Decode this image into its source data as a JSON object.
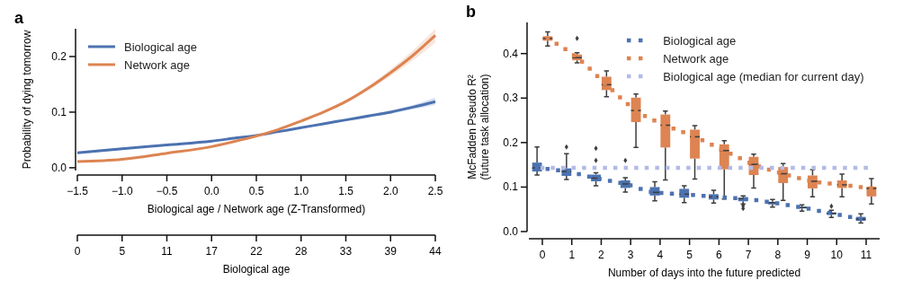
{
  "chart_data": [
    {
      "type": "line",
      "title": "a",
      "xlabel": "Biological age / Network age (Z-Transformed)",
      "ylabel": "Probability of dying tomorrow",
      "x2label": "Biological age",
      "xlim": [
        -1.5,
        2.5
      ],
      "ylim": [
        -0.005,
        0.25
      ],
      "xticks": [
        {
          "value": -1.5,
          "label": "−1.5"
        },
        {
          "value": -1,
          "label": "−1.0"
        },
        {
          "value": -0.5,
          "label": "−0.5"
        },
        {
          "value": 0,
          "label": "0.0"
        },
        0.5,
        {
          "value": 1,
          "label": "1.0"
        },
        1.5,
        {
          "value": 2,
          "label": "2.0"
        },
        2.5
      ],
      "yticks": [
        {
          "value": 0,
          "label": "0.0"
        },
        0.1,
        0.2
      ],
      "x2lim": [
        0,
        44
      ],
      "x2ticks": [
        0,
        {
          "value": 5.5,
          "label": "5"
        },
        11,
        {
          "value": 16.5,
          "label": "17"
        },
        22,
        {
          "value": 27.5,
          "label": "28"
        },
        33,
        {
          "value": 38.5,
          "label": "39"
        },
        44
      ],
      "x": [
        -1.5,
        -1,
        -0.5,
        0,
        0.25,
        0.5,
        0.75,
        1,
        1.25,
        1.5,
        1.75,
        2,
        2.25,
        2.5
      ],
      "series": [
        {
          "name": "Biological age",
          "color": "#4c72b0",
          "values": [
            0.027,
            0.034,
            0.041,
            0.048,
            0.053,
            0.058,
            0.065,
            0.072,
            0.079,
            0.086,
            0.093,
            0.1,
            0.109,
            0.119
          ],
          "lower": [
            0.025,
            0.032,
            0.04,
            0.047,
            0.052,
            0.057,
            0.064,
            0.071,
            0.077,
            0.084,
            0.09,
            0.097,
            0.105,
            0.113
          ],
          "upper": [
            0.029,
            0.036,
            0.042,
            0.049,
            0.054,
            0.059,
            0.066,
            0.073,
            0.081,
            0.088,
            0.096,
            0.103,
            0.113,
            0.126
          ]
        },
        {
          "name": "Network age",
          "color": "#dd8452",
          "values": [
            0.011,
            0.015,
            0.026,
            0.038,
            0.047,
            0.057,
            0.069,
            0.084,
            0.1,
            0.119,
            0.143,
            0.171,
            0.202,
            0.238
          ],
          "lower": [
            0.01,
            0.014,
            0.025,
            0.037,
            0.046,
            0.056,
            0.068,
            0.082,
            0.098,
            0.116,
            0.139,
            0.165,
            0.193,
            0.225
          ],
          "upper": [
            0.012,
            0.016,
            0.027,
            0.039,
            0.048,
            0.058,
            0.07,
            0.086,
            0.102,
            0.122,
            0.147,
            0.177,
            0.211,
            0.25
          ]
        }
      ],
      "legend": "top left",
      "line_style": "solid",
      "marker": "none"
    },
    {
      "type": "box",
      "title": "b",
      "xlabel": "Number of days into the future predicted",
      "ylabel": "McFadden Pseudo R²\n(future task allocation)",
      "categories": [
        "0",
        "1",
        "2",
        "3",
        "4",
        "5",
        "6",
        "7",
        "8",
        "9",
        "10",
        "11"
      ],
      "ylim": [
        0,
        0.47
      ],
      "yticks": [
        {
          "value": 0,
          "label": "0.0"
        },
        0.1,
        0.2,
        0.3,
        0.4
      ],
      "series": [
        {
          "color": "#4c72b0",
          "boxes": [
            {
              "low": 0.127,
              "q1": 0.135,
              "median": 0.143,
              "q3": 0.155,
              "high": 0.19
            },
            {
              "low": 0.117,
              "q1": 0.125,
              "median": 0.135,
              "q3": 0.142,
              "high": 0.175,
              "outliers": [
                0.19
              ]
            },
            {
              "low": 0.103,
              "q1": 0.113,
              "median": 0.12,
              "q3": 0.128,
              "high": 0.132,
              "outliers": [
                0.16,
                0.187
              ]
            },
            {
              "low": 0.089,
              "q1": 0.098,
              "median": 0.107,
              "q3": 0.115,
              "high": 0.121,
              "outliers": [
                0.16
              ]
            },
            {
              "low": 0.069,
              "q1": 0.081,
              "median": 0.088,
              "q3": 0.1,
              "high": 0.112
            },
            {
              "low": 0.065,
              "q1": 0.076,
              "median": 0.084,
              "q3": 0.096,
              "high": 0.103
            },
            {
              "low": 0.064,
              "q1": 0.072,
              "median": 0.078,
              "q3": 0.084,
              "high": 0.093
            },
            {
              "low": 0.062,
              "q1": 0.068,
              "median": 0.074,
              "q3": 0.076,
              "high": 0.08,
              "outliers": [
                0.052,
                0.058
              ]
            },
            {
              "low": 0.055,
              "q1": 0.061,
              "median": 0.065,
              "q3": 0.067,
              "high": 0.072
            },
            {
              "low": 0.046,
              "q1": 0.052,
              "median": 0.054,
              "q3": 0.056,
              "high": 0.06
            },
            {
              "low": 0.032,
              "q1": 0.038,
              "median": 0.041,
              "q3": 0.043,
              "high": 0.048,
              "outliers": [
                0.057
              ]
            },
            {
              "low": 0.019,
              "q1": 0.024,
              "median": 0.028,
              "q3": 0.033,
              "high": 0.04
            }
          ]
        },
        {
          "color": "#dd8452",
          "boxes": [
            {
              "low": 0.417,
              "q1": 0.429,
              "median": 0.434,
              "q3": 0.439,
              "high": 0.449
            },
            {
              "low": 0.379,
              "q1": 0.385,
              "median": 0.391,
              "q3": 0.398,
              "high": 0.402,
              "outliers": [
                0.434
              ]
            },
            {
              "low": 0.303,
              "q1": 0.318,
              "median": 0.33,
              "q3": 0.348,
              "high": 0.361
            },
            {
              "low": 0.189,
              "q1": 0.246,
              "median": 0.272,
              "q3": 0.301,
              "high": 0.309
            },
            {
              "low": 0.116,
              "q1": 0.189,
              "median": 0.239,
              "q3": 0.263,
              "high": 0.271
            },
            {
              "low": 0.118,
              "q1": 0.164,
              "median": 0.213,
              "q3": 0.229,
              "high": 0.238
            },
            {
              "low": 0.073,
              "q1": 0.14,
              "median": 0.182,
              "q3": 0.196,
              "high": 0.204
            },
            {
              "low": 0.098,
              "q1": 0.127,
              "median": 0.151,
              "q3": 0.168,
              "high": 0.174
            },
            {
              "low": 0.07,
              "q1": 0.109,
              "median": 0.13,
              "q3": 0.145,
              "high": 0.153
            },
            {
              "low": 0.078,
              "q1": 0.097,
              "median": 0.113,
              "q3": 0.126,
              "high": 0.139
            },
            {
              "low": 0.078,
              "q1": 0.098,
              "median": 0.105,
              "q3": 0.115,
              "high": 0.129
            },
            {
              "low": 0.062,
              "q1": 0.079,
              "median": 0.097,
              "q3": 0.101,
              "high": 0.119
            }
          ]
        },
        {
          "type": "line",
          "name": "Biological age",
          "color": "#4c72b0",
          "line_style": "dotted",
          "values": [
            0.143,
            0.135,
            0.12,
            0.107,
            0.088,
            0.084,
            0.078,
            0.074,
            0.065,
            0.054,
            0.041,
            0.028
          ]
        },
        {
          "type": "line",
          "name": "Network age",
          "color": "#dd8452",
          "line_style": "dotted",
          "values": [
            0.434,
            0.391,
            0.33,
            0.272,
            0.239,
            0.213,
            0.182,
            0.151,
            0.13,
            0.113,
            0.105,
            0.097
          ]
        },
        {
          "type": "line",
          "name": "Biological age (median for current day)",
          "color": "#b3bbe6",
          "line_style": "dotted",
          "values": [
            0.143,
            0.143,
            0.143,
            0.143,
            0.143,
            0.143,
            0.143,
            0.143,
            0.143,
            0.143,
            0.143,
            0.143
          ]
        }
      ],
      "legend": "top right",
      "marker": "none"
    }
  ]
}
